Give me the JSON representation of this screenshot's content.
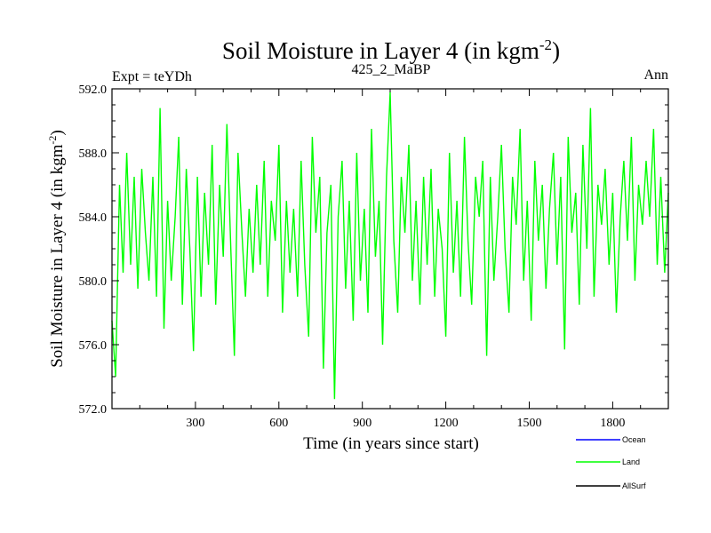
{
  "chart_data": {
    "type": "line",
    "title_main": "Soil Moisture in Layer 4 (in kgm",
    "title_sup": "-2",
    "title_close": ")",
    "left_label": "Expt = teYDh",
    "center_label": "425_2_MaBP",
    "right_label": "Ann",
    "xlabel": "Time (in years since start)",
    "ylabel_main": "Soil Moisture in Layer 4 (in kgm",
    "ylabel_sup": "-2",
    "ylabel_close": ")",
    "xlim": [
      0,
      2000
    ],
    "ylim": [
      572.0,
      592.0
    ],
    "x_ticks": [
      300,
      600,
      900,
      1200,
      1500,
      1800
    ],
    "y_ticks": [
      "572.0",
      "576.0",
      "580.0",
      "584.0",
      "588.0",
      "592.0"
    ],
    "y_tick_values": [
      572,
      576,
      580,
      584,
      588,
      592
    ],
    "legend": [
      {
        "name": "Ocean",
        "color": "#0000ff"
      },
      {
        "name": "Land",
        "color": "#00ff00"
      },
      {
        "name": "AllSurf",
        "color": "#000000"
      }
    ],
    "series": [
      {
        "name": "Land",
        "color": "#00ff00",
        "x": [
          0,
          13,
          27,
          40,
          53,
          67,
          80,
          93,
          107,
          120,
          133,
          147,
          160,
          173,
          187,
          200,
          213,
          227,
          240,
          253,
          267,
          280,
          293,
          307,
          320,
          333,
          347,
          360,
          373,
          387,
          400,
          413,
          427,
          440,
          453,
          467,
          480,
          493,
          507,
          520,
          533,
          547,
          560,
          573,
          587,
          600,
          613,
          627,
          640,
          653,
          667,
          680,
          693,
          707,
          720,
          733,
          747,
          760,
          773,
          787,
          800,
          813,
          827,
          840,
          853,
          867,
          880,
          893,
          907,
          920,
          933,
          947,
          960,
          973,
          987,
          1000,
          1013,
          1027,
          1040,
          1053,
          1067,
          1080,
          1093,
          1107,
          1120,
          1133,
          1147,
          1160,
          1173,
          1187,
          1200,
          1213,
          1227,
          1240,
          1253,
          1267,
          1280,
          1293,
          1307,
          1320,
          1333,
          1347,
          1360,
          1373,
          1387,
          1400,
          1413,
          1427,
          1440,
          1453,
          1467,
          1480,
          1493,
          1507,
          1520,
          1533,
          1547,
          1560,
          1573,
          1587,
          1600,
          1613,
          1627,
          1640,
          1653,
          1667,
          1680,
          1693,
          1707,
          1720,
          1733,
          1747,
          1760,
          1773,
          1787,
          1800,
          1813,
          1827,
          1840,
          1853,
          1867,
          1880,
          1893,
          1907,
          1920,
          1933,
          1947,
          1960,
          1973,
          1987,
          2000
        ],
        "values": [
          577.5,
          574.0,
          586.0,
          580.5,
          588.0,
          581.0,
          586.5,
          579.5,
          587.0,
          583.0,
          580.0,
          586.5,
          579.0,
          590.8,
          577.0,
          585.0,
          580.0,
          584.0,
          589.0,
          578.5,
          587.0,
          582.0,
          575.6,
          586.5,
          579.0,
          585.5,
          581.0,
          588.5,
          578.5,
          586.0,
          581.5,
          589.8,
          582.0,
          575.3,
          588.0,
          583.0,
          579.0,
          584.5,
          580.5,
          586.0,
          581.0,
          587.5,
          579.0,
          585.0,
          582.5,
          588.5,
          578.0,
          585.0,
          580.5,
          584.5,
          579.0,
          587.5,
          581.0,
          576.5,
          589.0,
          583.0,
          586.5,
          574.5,
          583.0,
          586.0,
          572.6,
          584.0,
          587.5,
          579.5,
          585.0,
          577.5,
          588.0,
          580.0,
          584.5,
          578.0,
          589.5,
          581.5,
          585.0,
          576.0,
          586.5,
          591.8,
          582.5,
          578.0,
          586.5,
          583.0,
          588.5,
          580.0,
          585.0,
          578.5,
          586.5,
          581.0,
          587.0,
          579.0,
          584.5,
          582.0,
          576.5,
          588.0,
          580.5,
          585.0,
          579.0,
          589.0,
          582.5,
          578.5,
          586.5,
          584.0,
          587.5,
          575.3,
          586.5,
          580.0,
          584.0,
          588.5,
          582.0,
          578.0,
          586.5,
          583.5,
          589.5,
          580.0,
          585.0,
          577.5,
          587.5,
          582.5,
          586.0,
          579.5,
          584.5,
          588.0,
          581.0,
          586.5,
          575.7,
          589.0,
          583.0,
          585.5,
          578.5,
          588.5,
          582.0,
          590.8,
          579.0,
          586.0,
          583.5,
          587.0,
          581.0,
          585.5,
          578.0,
          584.0,
          587.5,
          582.5,
          589.0,
          580.0,
          586.0,
          583.5,
          587.5,
          584.0,
          589.5,
          581.0,
          586.5,
          580.5,
          585.5
        ]
      }
    ]
  }
}
